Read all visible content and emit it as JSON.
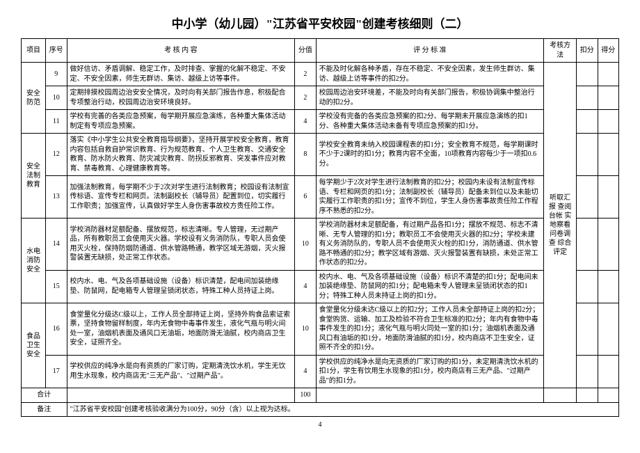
{
  "title": "中小学（幼儿园）\"江苏省平安校园\"创建考核细则（二）",
  "headers": {
    "project": "项目",
    "seq": "序号",
    "content": "考 核 内 容",
    "score": "分值",
    "criteria": "评 分 标 准",
    "method": "考核方法",
    "deduct": "扣分",
    "get": "得分"
  },
  "groups": [
    {
      "name": "安全防范",
      "rows": [
        {
          "seq": "9",
          "content": "做好信访、矛盾调解、稳定工作，及时排查、掌握的化解不稳定、不安定、不安全因素，师生无群访、集访、越级上访等事件。",
          "score": "2",
          "criteria": "不能及时化解各种矛盾，存在不稳定、不安全因素，发生师生群访、集访、越级上访等事件的扣2分。"
        },
        {
          "seq": "10",
          "content": "定期排摸校园周边治安安全情况，及时向有关部门报告作息，积极配合专项整治行动，校园周边治安环境良好。",
          "score": "2",
          "criteria": "校园周边治安环境差，不能及时向有关部门报告，积极协调集中整治行动的扣2分。"
        },
        {
          "seq": "11",
          "content": "学校有完善的各类应急预案，每学期开展应急演练，各种重大集体活动制定有专项应急预案。",
          "score": "4",
          "criteria": "学校没有完备的各类应急预案的扣2分、每学期未开展应急演练的扣1分、各种重大集体活动未备有专项应急预案的扣1分。"
        }
      ]
    },
    {
      "name": "安全法制教育",
      "rows": [
        {
          "seq": "12",
          "content": "落实《中小学生公共安全教育指导纲要》，坚持开展学校安全教育，教育内容包括自救自护常识教育、行为规范教育、个人卫生教育、交通安全教育、防水防火教育、防灾减灾教育、防拐反邪教育、突发事件应对教育、禁毒教育、心理健康教育等。",
          "score": "8",
          "criteria": "学校安全教育未纳入校园课程表的扣1分；安全教育不规范，每学期课时不少于2课时的扣1分；教育内容不全面，10项教育内容每少于一项扣0.6分。"
        },
        {
          "seq": "13",
          "content": "加强法制教育，每学期不少于2次对学生进行法制教育；校园设有法制宣传标语、宣传专栏和网页。法制副校长（辅导员）配置到位，切实履行工作职责；加强宣传，认真做好学生人身伤害事故校方责任险工作。",
          "score": "6",
          "criteria": "每学期少于2次对学生进行法制教育的扣2分；校园内未设有法制宣传标语、专栏和网页的扣1分；法制副校长（辅导员）配备未到位以及未能切实履行工作职责的扣1分；宣传不到位，学生人身伤害事故责任险工作程序不熟悉的扣2分。"
        }
      ]
    },
    {
      "name": "水电消防安全",
      "rows": [
        {
          "seq": "14",
          "content": "学校消防器材足额配备、摆放规范，标志清晰。专人管理，无过期产品，所有教职员工会使用灭火器。学校设有义务消防队，专职人员会使用灭火栓，保持防烟防通道、供水管路畅通，教学区域无游烟，灭火报警装置无缺损，处正常工作状态。",
          "score": "10",
          "criteria": "学校消防器材未足额配备，有过期产品各扣1分；摆放不规范、标志不清晰、无专人管理的扣1分；教职员工不会使用灭火器的扣2分；学校未建有义务消防队的，专职人员不会使用灭火栓的扣1分，消防通道、供水管路不畅通的扣2分；教学区域有游烟、灭火报警装置有缺损，未处正常工作状态的扣2分。"
        },
        {
          "seq": "15",
          "content": "校内水、电、气及各项基础设施（设备）标识清楚，配电间加装绝缘垫、防鼠网，配电箱专人管理呈锁闭状态，特殊工种人员持证上岗。",
          "score": "4",
          "criteria": "校内水、电、气及各项基础设施（设备）标识不清楚的扣1分；配电间未加装绝缘垫、防鼠网的扣1分；配电箱未专人管理未呈锁闭状态的扣1分；特殊工种人员未持证上岗的扣1分。"
        }
      ]
    },
    {
      "name": "食品卫生安全",
      "rows": [
        {
          "seq": "16",
          "content": "食堂量化分级达C级以上，工作人员全部持证上岗，坚持外购食品索证索票，坚持食物留样制度，年内无食物中毒事件发生，液化气瓶与明火间处一室，油烟机表面及通风口无油垢，地面防滑无油腻，校内商店卫生安全，证照齐全。",
          "score": "10",
          "criteria": "食堂量化分级未达C级以上的扣2分；工作人员未全部持证上岗的扣2分；食堂购货、运输、加工及检验不符合卫生标准的扣2分；年内有食物中毒事件发生的扣1分；液化气瓶与明火同处一室的扣1分；油烟机表面及通风口有油垢的扣1分，地面防滑油腻的扣1分，校内商店不卫生安全，证照不齐全的扣1分。"
        },
        {
          "seq": "17",
          "content": "学校供应的纯净水是向有资质的厂家订购，定期清洗饮水机，学生无饮用生水现象，校内商店无\"三无产品\"、\"过期产品\"。",
          "score": "4",
          "criteria": "学校供应的纯净水是向无资质的厂家订购的扣1分，未定期清洗饮水机的扣1分，学生有饮用生水现象的扣1分，校内商店有三无产品、\"过期产品\"的扣1分。"
        }
      ]
    }
  ],
  "method_text": "听取汇报 查阅台帐 实地察看 问卷调查 综合评定",
  "total_label": "合计",
  "total_score": "100",
  "note_label": "备注",
  "note_text": "\"江苏省平安校园\"创建考核验收满分为100分，90分（含）以上视为达标。",
  "page_number": "4"
}
